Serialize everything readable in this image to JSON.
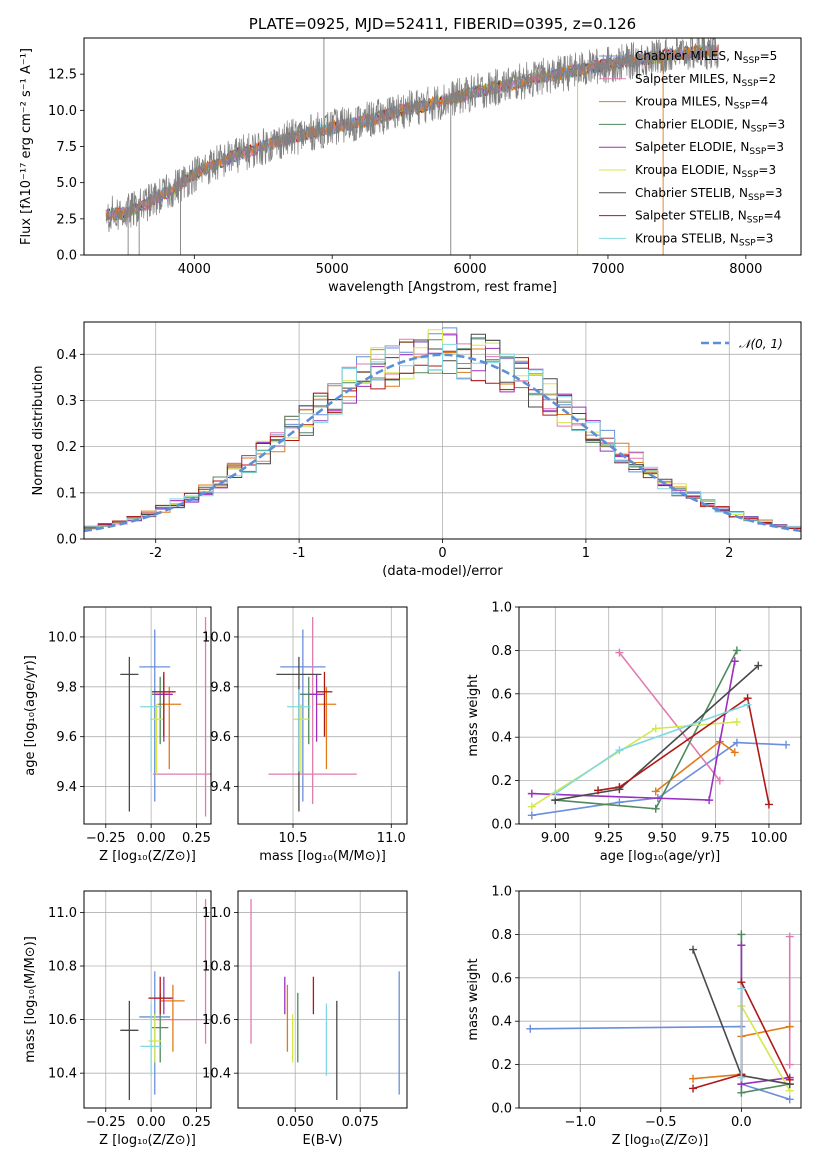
{
  "chart_data": [
    {
      "id": "spectrum",
      "type": "line",
      "title": "PLATE=0925, MJD=52411, FIBERID=0395, z=0.126",
      "xlabel": "wavelength [Angstrom, rest frame]",
      "ylabel": "Flux [fλ10⁻¹⁷ erg cm⁻² s⁻¹ A⁻¹]",
      "xlim": [
        3200,
        8400
      ],
      "ylim": [
        0,
        15
      ],
      "xticks": [
        4000,
        5000,
        6000,
        7000,
        8000
      ],
      "yticks": [
        0.0,
        2.5,
        5.0,
        7.5,
        10.0,
        12.5
      ],
      "data_color": "#808080",
      "observed_flux": {
        "x": [
          3390,
          3500,
          3600,
          3700,
          3800,
          3900,
          4000,
          4100,
          4200,
          4300,
          4400,
          4500,
          4700,
          4900,
          5100,
          5300,
          5500,
          5700,
          5900,
          6100,
          6300,
          6500,
          6700,
          6900,
          7100,
          7300,
          7500,
          7700
        ],
        "y": [
          2.8,
          2.9,
          3.3,
          3.8,
          4.3,
          4.9,
          5.6,
          6.1,
          6.5,
          6.9,
          7.2,
          7.5,
          8.1,
          8.6,
          9.0,
          9.4,
          10.0,
          10.4,
          10.9,
          11.4,
          11.8,
          12.3,
          12.6,
          13.0,
          13.3,
          13.6,
          13.9,
          14.1
        ]
      },
      "grid": false,
      "legend_placement": "right",
      "series": [
        {
          "name": "Chabrier MILES, N",
          "sub": "SSP",
          "suffix": "=5",
          "color": "#6a8fdb"
        },
        {
          "name": "Salpeter MILES, N",
          "sub": "SSP",
          "suffix": "=2",
          "color": "#e07bb0"
        },
        {
          "name": "Kroupa MILES, N",
          "sub": "SSP",
          "suffix": "=4",
          "color": "#e07b1a"
        },
        {
          "name": "Chabrier ELODIE, N",
          "sub": "SSP",
          "suffix": "=3",
          "color": "#4f8a5c"
        },
        {
          "name": "Salpeter ELODIE, N",
          "sub": "SSP",
          "suffix": "=3",
          "color": "#9b30c0"
        },
        {
          "name": "Kroupa ELODIE, N",
          "sub": "SSP",
          "suffix": "=3",
          "color": "#d4e84c"
        },
        {
          "name": "Chabrier STELIB, N",
          "sub": "SSP",
          "suffix": "=3",
          "color": "#4a4a4a"
        },
        {
          "name": "Salpeter STELIB, N",
          "sub": "SSP",
          "suffix": "=4",
          "color": "#b01818"
        },
        {
          "name": "Kroupa STELIB, N",
          "sub": "SSP",
          "suffix": "=3",
          "color": "#80d8e0"
        }
      ]
    },
    {
      "id": "residuals",
      "type": "line",
      "title": "",
      "xlabel": "(data-model)/error",
      "ylabel": "Normed distribution",
      "xlim": [
        -2.5,
        2.5
      ],
      "ylim": [
        0,
        0.47
      ],
      "xticks": [
        -2,
        -1,
        0,
        1,
        2
      ],
      "yticks": [
        0.0,
        0.1,
        0.2,
        0.3,
        0.4
      ],
      "grid": true,
      "legend": {
        "label": "𝒩(0, 1)",
        "placement": "top-right",
        "color": "#5b8fd9"
      },
      "normal_curve": {
        "mu": 0,
        "sigma": 1
      },
      "bin_width": 0.1
    },
    {
      "id": "age-vs-Z",
      "type": "scatter",
      "xlabel": "Z [log₁₀(Z/Z⊙)]",
      "ylabel": "age  [log₁₀(age/yr)]",
      "xlim": [
        -0.37,
        0.33
      ],
      "ylim": [
        9.25,
        10.12
      ],
      "xticks": [
        -0.25,
        0.0,
        0.25
      ],
      "xticklabels": [
        "−0.25",
        "0.00",
        "0.25"
      ],
      "yticks": [
        9.4,
        9.6,
        9.8,
        10.0
      ],
      "grid": true,
      "points": [
        {
          "x": 0.02,
          "y": 9.88,
          "xerr": 0.17,
          "ylo": 9.34,
          "yhi": 10.03,
          "color": "#6a8fdb"
        },
        {
          "x": 0.3,
          "y": 9.45,
          "xerr": 0.58,
          "ylo": 9.28,
          "yhi": 10.08,
          "color": "#e07bb0"
        },
        {
          "x": 0.1,
          "y": 9.73,
          "xerr": 0.13,
          "ylo": 9.47,
          "yhi": 9.8,
          "color": "#e07b1a"
        },
        {
          "x": 0.05,
          "y": 9.77,
          "xerr": 0.09,
          "ylo": 9.57,
          "yhi": 9.84,
          "color": "#4f8a5c"
        },
        {
          "x": 0.07,
          "y": 9.77,
          "xerr": 0.1,
          "ylo": 9.58,
          "yhi": 9.85,
          "color": "#9b30c0"
        },
        {
          "x": 0.03,
          "y": 9.67,
          "xerr": 0.07,
          "ylo": 9.45,
          "yhi": 9.73,
          "color": "#d4e84c"
        },
        {
          "x": -0.12,
          "y": 9.85,
          "xerr": 0.1,
          "ylo": 9.3,
          "yhi": 9.92,
          "color": "#4a4a4a"
        },
        {
          "x": 0.07,
          "y": 9.78,
          "xerr": 0.13,
          "ylo": 9.6,
          "yhi": 9.86,
          "color": "#b01818"
        },
        {
          "x": 0.0,
          "y": 9.72,
          "xerr": 0.12,
          "ylo": 9.46,
          "yhi": 9.79,
          "color": "#80d8e0"
        }
      ]
    },
    {
      "id": "age-vs-mass",
      "type": "scatter",
      "xlabel": "mass [log₁₀(M/M⊙)]",
      "ylabel": "",
      "xlim": [
        10.22,
        11.08
      ],
      "ylim": [
        9.25,
        10.12
      ],
      "xticks": [
        10.5,
        11.0
      ],
      "xticklabels": [
        "10.5",
        "11.0"
      ],
      "yticks": [
        9.4,
        9.6,
        9.8,
        10.0
      ],
      "grid": true,
      "points": [
        {
          "x": 10.55,
          "y": 9.88,
          "xerr": 0.23,
          "ylo": 9.34,
          "yhi": 10.03,
          "color": "#6a8fdb"
        },
        {
          "x": 10.6,
          "y": 9.45,
          "xerr": 0.45,
          "ylo": 9.33,
          "yhi": 10.08,
          "color": "#e07bb0"
        },
        {
          "x": 10.67,
          "y": 9.73,
          "xerr": 0.1,
          "ylo": 9.47,
          "yhi": 9.8,
          "color": "#e07b1a"
        },
        {
          "x": 10.58,
          "y": 9.77,
          "xerr": 0.09,
          "ylo": 9.57,
          "yhi": 9.84,
          "color": "#4f8a5c"
        },
        {
          "x": 10.62,
          "y": 9.77,
          "xerr": 0.08,
          "ylo": 9.58,
          "yhi": 9.85,
          "color": "#9b30c0"
        },
        {
          "x": 10.54,
          "y": 9.67,
          "xerr": 0.08,
          "ylo": 9.45,
          "yhi": 9.73,
          "color": "#d4e84c"
        },
        {
          "x": 10.53,
          "y": 9.85,
          "xerr": 0.23,
          "ylo": 9.3,
          "yhi": 9.92,
          "color": "#4a4a4a"
        },
        {
          "x": 10.66,
          "y": 9.78,
          "xerr": 0.08,
          "ylo": 9.6,
          "yhi": 9.86,
          "color": "#b01818"
        },
        {
          "x": 10.53,
          "y": 9.72,
          "xerr": 0.12,
          "ylo": 9.46,
          "yhi": 9.79,
          "color": "#80d8e0"
        }
      ]
    },
    {
      "id": "weight-vs-age",
      "type": "line",
      "xlabel": "age  [log₁₀(age/yr)]",
      "ylabel": "mass weight",
      "xlim": [
        8.83,
        10.15
      ],
      "ylim": [
        0,
        1.0
      ],
      "xticks": [
        9.0,
        9.25,
        9.5,
        9.75,
        10.0
      ],
      "xticklabels": [
        "9.00",
        "9.25",
        "9.50",
        "9.75",
        "10.00"
      ],
      "yticks": [
        0.0,
        0.2,
        0.4,
        0.6,
        0.8,
        1.0
      ],
      "grid": true,
      "series": [
        {
          "color": "#6a8fdb",
          "x": [
            8.89,
            9.3,
            9.48,
            9.85,
            10.08
          ],
          "y": [
            0.04,
            0.1,
            0.12,
            0.375,
            0.365
          ]
        },
        {
          "color": "#e07bb0",
          "x": [
            9.3,
            9.77
          ],
          "y": [
            0.79,
            0.2
          ]
        },
        {
          "color": "#e07b1a",
          "x": [
            9.47,
            9.77,
            9.84
          ],
          "y": [
            0.15,
            0.38,
            0.33
          ]
        },
        {
          "color": "#4f8a5c",
          "x": [
            9.0,
            9.47,
            9.85
          ],
          "y": [
            0.11,
            0.07,
            0.8
          ]
        },
        {
          "color": "#9b30c0",
          "x": [
            8.89,
            9.72,
            9.84
          ],
          "y": [
            0.14,
            0.11,
            0.75
          ]
        },
        {
          "color": "#d4e84c",
          "x": [
            8.89,
            9.47,
            9.85
          ],
          "y": [
            0.08,
            0.44,
            0.47
          ]
        },
        {
          "color": "#4a4a4a",
          "x": [
            9.0,
            9.3,
            9.95
          ],
          "y": [
            0.11,
            0.16,
            0.73
          ]
        },
        {
          "color": "#b01818",
          "x": [
            9.2,
            9.3,
            9.9,
            10.0
          ],
          "y": [
            0.155,
            0.17,
            0.58,
            0.09
          ]
        },
        {
          "color": "#80d8e0",
          "x": [
            9.0,
            9.3,
            9.9
          ],
          "y": [
            0.14,
            0.34,
            0.55
          ]
        }
      ]
    },
    {
      "id": "mass-vs-Z",
      "type": "scatter",
      "xlabel": "Z [log₁₀(Z/Z⊙)]",
      "ylabel": "mass [log₁₀(M/M⊙)]",
      "xlim": [
        -0.37,
        0.33
      ],
      "ylim": [
        10.27,
        11.08
      ],
      "xticks": [
        -0.25,
        0.0,
        0.25
      ],
      "xticklabels": [
        "−0.25",
        "0.00",
        "0.25"
      ],
      "yticks": [
        10.4,
        10.6,
        10.8,
        11.0
      ],
      "grid": true,
      "points": [
        {
          "x": 0.02,
          "y": 10.61,
          "xerr": 0.17,
          "ylo": 10.32,
          "yhi": 10.78,
          "color": "#6a8fdb"
        },
        {
          "x": 0.3,
          "y": 10.6,
          "xerr": 0.58,
          "ylo": 10.51,
          "yhi": 11.05,
          "color": "#e07bb0"
        },
        {
          "x": 0.12,
          "y": 10.67,
          "xerr": 0.13,
          "ylo": 10.48,
          "yhi": 10.73,
          "color": "#e07b1a"
        },
        {
          "x": 0.05,
          "y": 10.57,
          "xerr": 0.09,
          "ylo": 10.44,
          "yhi": 10.7,
          "color": "#4f8a5c"
        },
        {
          "x": 0.07,
          "y": 10.68,
          "xerr": 0.1,
          "ylo": 10.62,
          "yhi": 10.76,
          "color": "#9b30c0"
        },
        {
          "x": 0.02,
          "y": 10.52,
          "xerr": 0.07,
          "ylo": 10.44,
          "yhi": 10.62,
          "color": "#d4e84c"
        },
        {
          "x": -0.12,
          "y": 10.56,
          "xerr": 0.1,
          "ylo": 10.3,
          "yhi": 10.67,
          "color": "#4a4a4a"
        },
        {
          "x": 0.05,
          "y": 10.68,
          "xerr": 0.13,
          "ylo": 10.62,
          "yhi": 10.76,
          "color": "#b01818"
        },
        {
          "x": 0.0,
          "y": 10.5,
          "xerr": 0.12,
          "ylo": 10.39,
          "yhi": 10.66,
          "color": "#80d8e0"
        }
      ]
    },
    {
      "id": "mass-vs-ebv",
      "type": "scatter",
      "xlabel": "E(B-V)",
      "ylabel": "",
      "xlim": [
        0.028,
        0.093
      ],
      "ylim": [
        10.27,
        11.08
      ],
      "xticks": [
        0.05,
        0.075
      ],
      "xticklabels": [
        "0.050",
        "0.075"
      ],
      "yticks": [
        10.4,
        10.6,
        10.8,
        11.0
      ],
      "grid": true,
      "points": [
        {
          "x": 0.09,
          "ylo": 10.32,
          "yhi": 10.78,
          "color": "#6a8fdb"
        },
        {
          "x": 0.033,
          "ylo": 10.51,
          "yhi": 11.05,
          "color": "#e07bb0"
        },
        {
          "x": 0.047,
          "ylo": 10.48,
          "yhi": 10.73,
          "color": "#e07b1a"
        },
        {
          "x": 0.051,
          "ylo": 10.44,
          "yhi": 10.7,
          "color": "#4f8a5c"
        },
        {
          "x": 0.046,
          "ylo": 10.62,
          "yhi": 10.76,
          "color": "#9b30c0"
        },
        {
          "x": 0.049,
          "ylo": 10.44,
          "yhi": 10.62,
          "color": "#d4e84c"
        },
        {
          "x": 0.066,
          "ylo": 10.3,
          "yhi": 10.67,
          "color": "#4a4a4a"
        },
        {
          "x": 0.057,
          "ylo": 10.62,
          "yhi": 10.76,
          "color": "#b01818"
        },
        {
          "x": 0.062,
          "ylo": 10.39,
          "yhi": 10.66,
          "color": "#80d8e0"
        }
      ]
    },
    {
      "id": "weight-vs-Z",
      "type": "line",
      "xlabel": "Z [log₁₀(Z/Z⊙)]",
      "ylabel": "mass weight",
      "xlim": [
        -1.38,
        0.37
      ],
      "ylim": [
        0,
        1.0
      ],
      "xticks": [
        -1.0,
        -0.5,
        0.0
      ],
      "xticklabels": [
        "−1.0",
        "−0.5",
        "0.0"
      ],
      "yticks": [
        0.0,
        0.2,
        0.4,
        0.6,
        0.8,
        1.0
      ],
      "grid": true,
      "series": [
        {
          "color": "#6a8fdb",
          "x": [
            -1.31,
            0.0,
            0.0,
            0.3
          ],
          "y": [
            0.365,
            0.375,
            0.11,
            0.04
          ]
        },
        {
          "color": "#e07bb0",
          "x": [
            0.3,
            0.3
          ],
          "y": [
            0.79,
            0.2
          ]
        },
        {
          "color": "#e07b1a",
          "x": [
            -0.3,
            0.0,
            0.0,
            0.3
          ],
          "y": [
            0.135,
            0.155,
            0.33,
            0.375
          ]
        },
        {
          "color": "#4f8a5c",
          "x": [
            0.0,
            0.0,
            0.3
          ],
          "y": [
            0.8,
            0.07,
            0.11
          ]
        },
        {
          "color": "#9b30c0",
          "x": [
            0.0,
            0.0,
            0.3
          ],
          "y": [
            0.75,
            0.11,
            0.14
          ]
        },
        {
          "color": "#d4e84c",
          "x": [
            0.0,
            0.3
          ],
          "y": [
            0.47,
            0.08
          ]
        },
        {
          "color": "#4a4a4a",
          "x": [
            -0.3,
            0.0,
            0.3
          ],
          "y": [
            0.73,
            0.15,
            0.11
          ]
        },
        {
          "color": "#b01818",
          "x": [
            -0.3,
            0.0,
            0.0,
            0.3
          ],
          "y": [
            0.09,
            0.155,
            0.58,
            0.13
          ]
        },
        {
          "color": "#80d8e0",
          "x": [
            0.0,
            0.0
          ],
          "y": [
            0.55,
            0.14
          ]
        }
      ]
    }
  ]
}
